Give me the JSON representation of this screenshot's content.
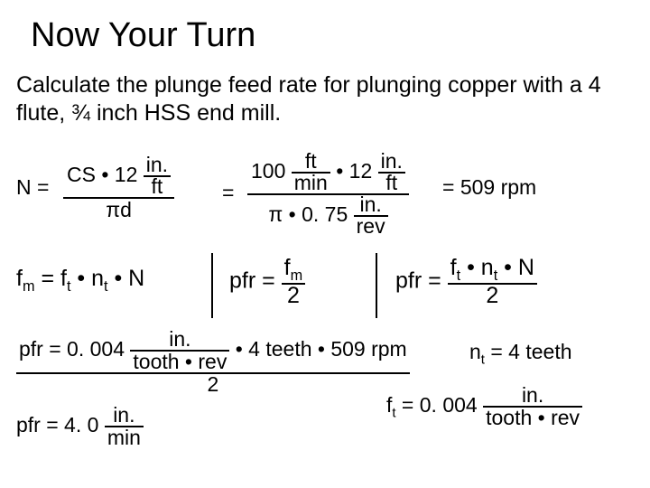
{
  "title": "Now Your Turn",
  "prompt": "Calculate the plunge feed rate for plunging copper with a 4 flute, ¾ inch HSS end mill.",
  "N_label": "N =",
  "eq1_left_num_cs": "CS •",
  "eq1_left_num_12": "12",
  "eq1_left_num_in": "in.",
  "eq1_left_num_ft": "ft",
  "eq1_left_den": "πd",
  "eq1_eq": "=",
  "eq1_right_top_100": "100",
  "eq1_right_top_ft": "ft",
  "eq1_right_top_min": "min",
  "eq1_right_top_dot": " • ",
  "eq1_right_top_12": "12",
  "eq1_right_top_in": "in.",
  "eq1_right_top_ft2": "ft",
  "eq1_right_bot_pi": "π • 0. 75",
  "eq1_right_bot_in": "in.",
  "eq1_right_bot_rev": "rev",
  "eq1_result": "= 509 rpm",
  "row2a_pre": "f",
  "row2a_m": "m",
  "row2a_mid": " = f",
  "row2a_t": "t",
  "row2a_mid2": " • n",
  "row2a_t2": "t",
  "row2a_end": " • N",
  "row2b_pre": "pfr = ",
  "row2b_fnum": "f",
  "row2b_fm": "m",
  "row2b_fden": "2",
  "row2c_pre": "pfr = ",
  "row2c_num_f": "f",
  "row2c_num_t": "t",
  "row2c_num_mid": " • n",
  "row2c_num_t2": "t",
  "row2c_num_end": " • N",
  "row2c_den": "2",
  "pfr_line_pre": "pfr = 0. 004 ",
  "pfr_in": "in.",
  "pfr_tooth": "tooth",
  "pfr_dot": " • ",
  "pfr_rev": "rev",
  "pfr_mid": " • 4 teeth •  509 rpm",
  "pfr_div2": "2",
  "pfr2_pre": "pfr = 4. 0 ",
  "pfr2_in": "in.",
  "pfr2_min": "min",
  "nt_pre": "n",
  "nt_t": "t",
  "nt_val": " = 4 teeth",
  "ft_pre": "f",
  "ft_t": "t",
  "ft_mid": " = 0. 004 ",
  "ft_in": "in.",
  "ft_den": "tooth • rev"
}
